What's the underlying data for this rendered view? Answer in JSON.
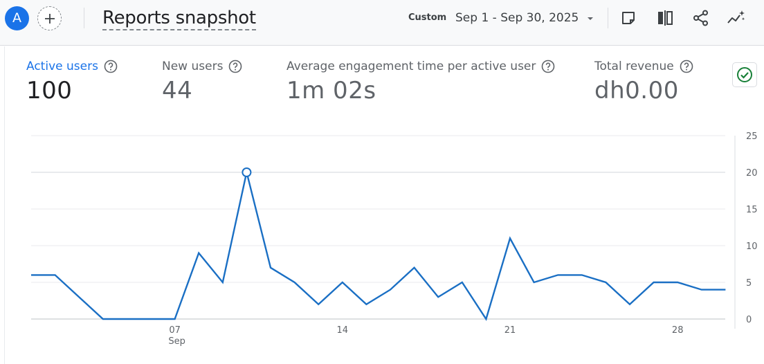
{
  "header": {
    "avatar_letter": "A",
    "title": "Reports snapshot",
    "date_mode": "Custom",
    "date_range": "Sep 1 - Sep 30, 2025",
    "icons": [
      "add-comparison-icon",
      "chevron-down-icon",
      "customize-report-icon",
      "compare-icon",
      "share-icon",
      "insights-icon"
    ]
  },
  "metrics": [
    {
      "label": "Active users",
      "value": "100"
    },
    {
      "label": "New users",
      "value": "44"
    },
    {
      "label": "Average engagement time per active user",
      "value": "1m 02s"
    },
    {
      "label": "Total revenue",
      "value": "dh0.00"
    }
  ],
  "status_icon": "check-circle-icon",
  "colors": {
    "accent": "#1a73e8",
    "line": "#1a6fc4",
    "success": "#188038"
  },
  "chart_data": {
    "type": "line",
    "x": [
      "Sep 1",
      "Sep 2",
      "Sep 3",
      "Sep 4",
      "Sep 5",
      "Sep 6",
      "Sep 7",
      "Sep 8",
      "Sep 9",
      "Sep 10",
      "Sep 11",
      "Sep 12",
      "Sep 13",
      "Sep 14",
      "Sep 15",
      "Sep 16",
      "Sep 17",
      "Sep 18",
      "Sep 19",
      "Sep 20",
      "Sep 21",
      "Sep 22",
      "Sep 23",
      "Sep 24",
      "Sep 25",
      "Sep 26",
      "Sep 27",
      "Sep 28",
      "Sep 29",
      "Sep 30"
    ],
    "series": [
      {
        "values": [
          6,
          6,
          3,
          0,
          0,
          0,
          0,
          9,
          5,
          20,
          7,
          5,
          2,
          5,
          2,
          4,
          7,
          3,
          5,
          0,
          11,
          5,
          6,
          6,
          5,
          2,
          5,
          5,
          4,
          4
        ]
      }
    ],
    "x_tick_labels": [
      {
        "label": "07",
        "sublabel": "Sep",
        "at": "Sep 7"
      },
      {
        "label": "14",
        "at": "Sep 14"
      },
      {
        "label": "21",
        "at": "Sep 21"
      },
      {
        "label": "28",
        "at": "Sep 28"
      }
    ],
    "y_ticks": [
      0,
      5,
      10,
      15,
      20,
      25
    ],
    "ylim": [
      0,
      25
    ],
    "y_axis_side": "right",
    "grid": true,
    "highlighted_point": "Sep 10"
  }
}
